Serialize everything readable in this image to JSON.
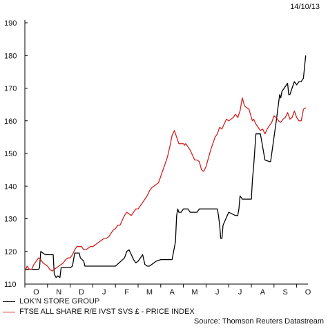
{
  "date_label": "14/10/13",
  "source": "Source: Thomson Reuters Datastream",
  "chart_data": {
    "type": "line",
    "title": "",
    "xlabel": "",
    "ylabel": "",
    "ylim": [
      110,
      190
    ],
    "yticks": [
      110,
      120,
      130,
      140,
      150,
      160,
      170,
      180,
      190
    ],
    "xlim": [
      0,
      12.5
    ],
    "month_labels": [
      "O",
      "N",
      "D",
      "J",
      "F",
      "M",
      "A",
      "M",
      "J",
      "J",
      "A",
      "S",
      "O"
    ],
    "grid": false,
    "legend_position": "bottom-left",
    "series": [
      {
        "name": "LOK'N STORE GROUP",
        "color": "#000000",
        "x": [
          0,
          0.6,
          0.65,
          0.7,
          0.9,
          0.95,
          1.0,
          1.25,
          1.3,
          1.38,
          1.45,
          1.55,
          1.6,
          1.75,
          1.85,
          2.0,
          2.1,
          2.2,
          2.4,
          2.45,
          2.6,
          2.65,
          2.8,
          3.0,
          3.5,
          4.0,
          4.4,
          4.5,
          4.6,
          4.7,
          4.8,
          4.9,
          5.0,
          5.2,
          5.3,
          5.4,
          5.5,
          5.7,
          5.8,
          6.0,
          6.5,
          6.65,
          6.7,
          6.75,
          6.8,
          6.9,
          7.0,
          7.1,
          7.2,
          7.3,
          7.4,
          7.6,
          7.7,
          7.9,
          8.0,
          8.5,
          8.55,
          8.6,
          8.65,
          8.7,
          8.75,
          9.0,
          9.3,
          9.4,
          9.45,
          9.5,
          9.6,
          9.8,
          9.95,
          10.0,
          10.05,
          10.1,
          10.2,
          10.4,
          10.6,
          10.8,
          10.85,
          11.1,
          11.25,
          11.3,
          11.35,
          11.6,
          11.65,
          11.7,
          11.8,
          11.9,
          12.0,
          12.1,
          12.2,
          12.3,
          12.4
        ],
        "values": [
          114.5,
          114.5,
          115,
          120,
          119,
          119,
          119,
          119,
          113,
          112,
          112.5,
          112,
          115,
          115,
          115,
          115,
          115.5,
          119.5,
          119.5,
          118,
          117,
          115.5,
          115.5,
          115.5,
          115.5,
          115.5,
          118,
          120,
          120.5,
          119,
          117.5,
          116.5,
          117,
          119,
          116,
          115.5,
          115.5,
          116.5,
          117,
          117.5,
          117.5,
          123,
          131,
          133,
          132,
          132,
          133,
          133,
          133,
          132,
          132,
          132,
          133,
          133,
          133,
          133,
          131,
          128,
          124,
          124,
          128,
          132,
          131,
          131,
          133,
          137,
          136,
          136,
          136,
          136,
          142,
          146,
          156,
          156,
          148,
          147.5,
          147.5,
          160,
          168,
          167,
          169,
          171.5,
          168,
          168,
          170,
          172,
          171,
          172,
          172,
          173,
          180
        ]
      },
      {
        "name": "FTSE ALL SHARE R/E IVST SVS £ - PRICE INDEX",
        "color": "#d42020",
        "x": [
          0,
          0.1,
          0.2,
          0.3,
          0.4,
          0.5,
          0.6,
          0.7,
          0.8,
          0.9,
          1.0,
          1.1,
          1.2,
          1.3,
          1.4,
          1.5,
          1.6,
          1.7,
          1.8,
          1.9,
          2.0,
          2.1,
          2.2,
          2.3,
          2.4,
          2.5,
          2.6,
          2.7,
          2.8,
          2.9,
          3.0,
          3.1,
          3.2,
          3.3,
          3.4,
          3.5,
          3.6,
          3.7,
          3.8,
          3.9,
          4.0,
          4.1,
          4.2,
          4.3,
          4.4,
          4.5,
          4.6,
          4.7,
          4.8,
          4.9,
          5.0,
          5.1,
          5.2,
          5.3,
          5.4,
          5.5,
          5.6,
          5.7,
          5.8,
          5.9,
          6.0,
          6.1,
          6.2,
          6.3,
          6.4,
          6.5,
          6.6,
          6.7,
          6.8,
          6.9,
          7.0,
          7.05,
          7.1,
          7.2,
          7.3,
          7.4,
          7.5,
          7.6,
          7.7,
          7.8,
          7.9,
          8.0,
          8.1,
          8.2,
          8.3,
          8.4,
          8.5,
          8.55,
          8.6,
          8.7,
          8.8,
          8.9,
          9.0,
          9.1,
          9.2,
          9.3,
          9.4,
          9.5,
          9.6,
          9.7,
          9.8,
          9.9,
          10.0,
          10.05,
          10.1,
          10.2,
          10.3,
          10.4,
          10.5,
          10.6,
          10.7,
          10.8,
          10.9,
          11.0,
          11.1,
          11.2,
          11.3,
          11.4,
          11.5,
          11.6,
          11.7,
          11.8,
          11.9,
          12.0,
          12.1,
          12.2,
          12.3,
          12.4
        ],
        "values": [
          114,
          115.5,
          114.5,
          114.5,
          116,
          117,
          118,
          117.5,
          116.5,
          116,
          115.5,
          114.5,
          114,
          114.5,
          115,
          115.5,
          116,
          116.5,
          117.5,
          118,
          118,
          119,
          120.5,
          121.5,
          121.5,
          121.5,
          120.5,
          120.5,
          121,
          121.5,
          121.5,
          122,
          122.5,
          123,
          123.5,
          124,
          124,
          124.5,
          125.5,
          126.5,
          127,
          128,
          128,
          129.5,
          131,
          132,
          131.5,
          131,
          132,
          133,
          133,
          134,
          135,
          136,
          137,
          138.5,
          139.5,
          140,
          140.5,
          141,
          143,
          145,
          147,
          149,
          152,
          155.5,
          157,
          155,
          153,
          153,
          153,
          152.5,
          153,
          152,
          151,
          149.5,
          148,
          148,
          147.5,
          145,
          144.5,
          146,
          148.5,
          151,
          153,
          155,
          156,
          157,
          158,
          157.5,
          159,
          160.5,
          160,
          160.5,
          161,
          162,
          161,
          163,
          167,
          164.5,
          164,
          163.5,
          161,
          160,
          160.5,
          159,
          158,
          157,
          157.5,
          156,
          157.5,
          158.5,
          159.5,
          161.5,
          161,
          160,
          159.5,
          160.5,
          161,
          162.5,
          160.5,
          161,
          163,
          161,
          160,
          160,
          163.5,
          164
        ]
      }
    ]
  }
}
